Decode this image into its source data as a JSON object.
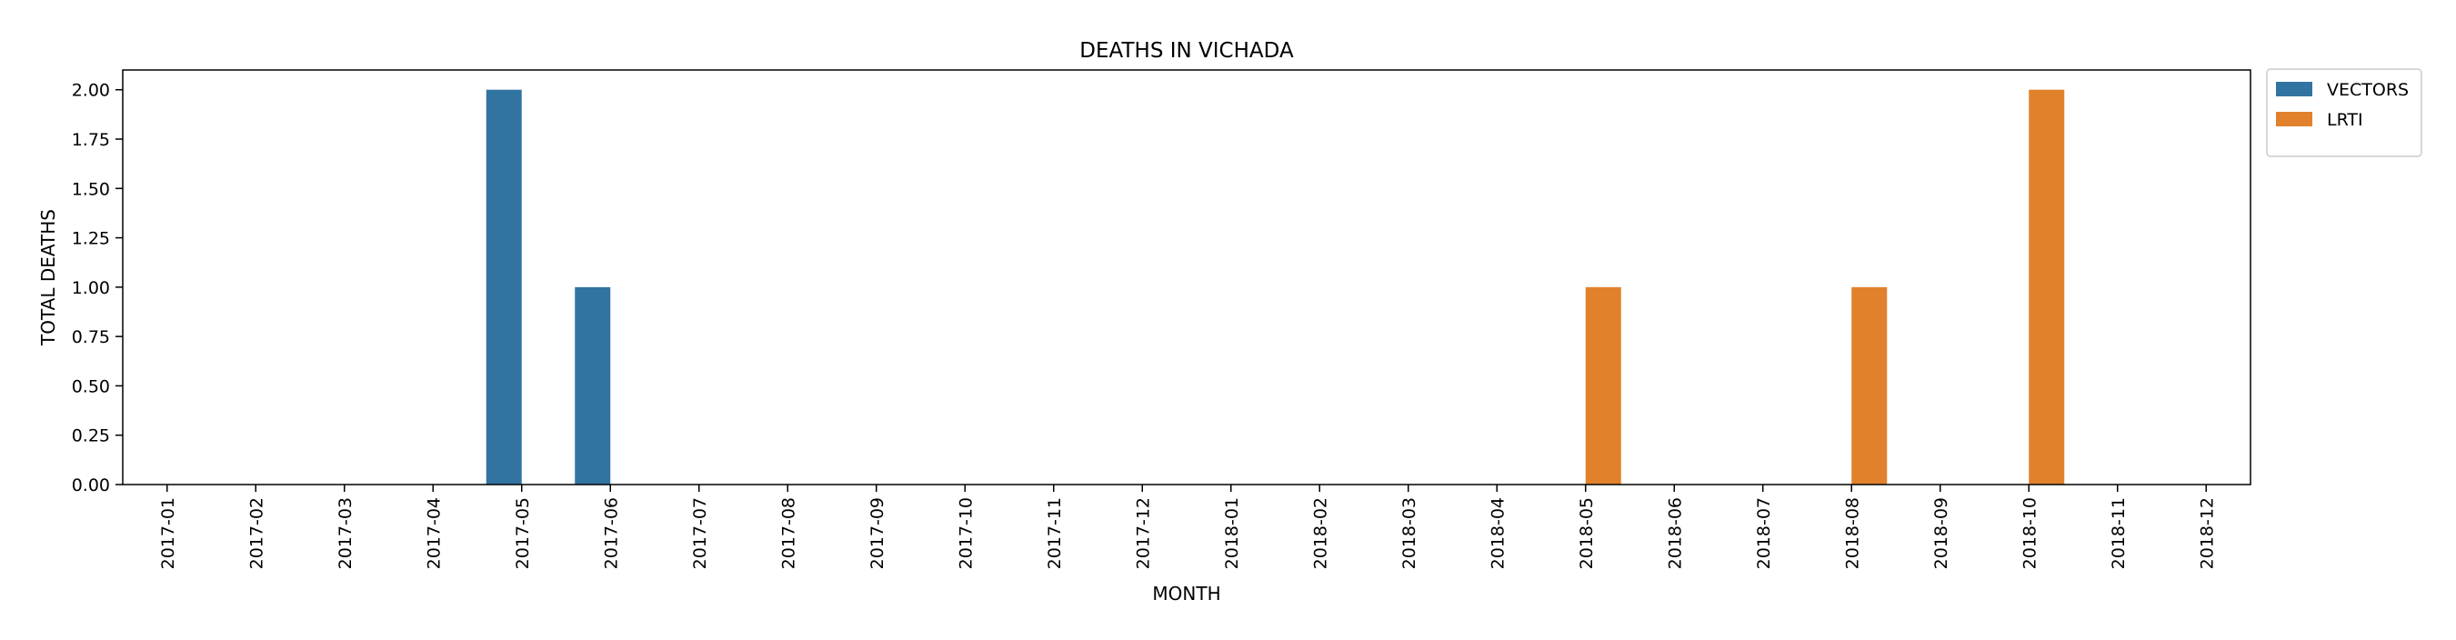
{
  "chart_data": {
    "type": "bar",
    "title": "DEATHS IN VICHADA",
    "xlabel": "MONTH",
    "ylabel": "TOTAL DEATHS",
    "ylim": [
      0,
      2.1
    ],
    "yticks": [
      "0.00",
      "0.25",
      "0.50",
      "0.75",
      "1.00",
      "1.25",
      "1.50",
      "1.75",
      "2.00"
    ],
    "grid": false,
    "legend_position": "outside-top-right",
    "categories": [
      "2017-01",
      "2017-02",
      "2017-03",
      "2017-04",
      "2017-05",
      "2017-06",
      "2017-07",
      "2017-08",
      "2017-09",
      "2017-10",
      "2017-11",
      "2017-12",
      "2018-01",
      "2018-02",
      "2018-03",
      "2018-04",
      "2018-05",
      "2018-06",
      "2018-07",
      "2018-08",
      "2018-09",
      "2018-10",
      "2018-11",
      "2018-12"
    ],
    "series": [
      {
        "name": "VECTORS",
        "color": "#3274a1",
        "values": [
          0,
          0,
          0,
          0,
          2,
          1,
          0,
          0,
          0,
          0,
          0,
          0,
          0,
          0,
          0,
          0,
          0,
          0,
          0,
          0,
          0,
          0,
          0,
          0
        ]
      },
      {
        "name": "LRTI",
        "color": "#e1812c",
        "values": [
          0,
          0,
          0,
          0,
          0,
          0,
          0,
          0,
          0,
          0,
          0,
          0,
          0,
          0,
          0,
          0,
          1,
          0,
          0,
          1,
          0,
          2,
          0,
          0
        ]
      }
    ]
  }
}
